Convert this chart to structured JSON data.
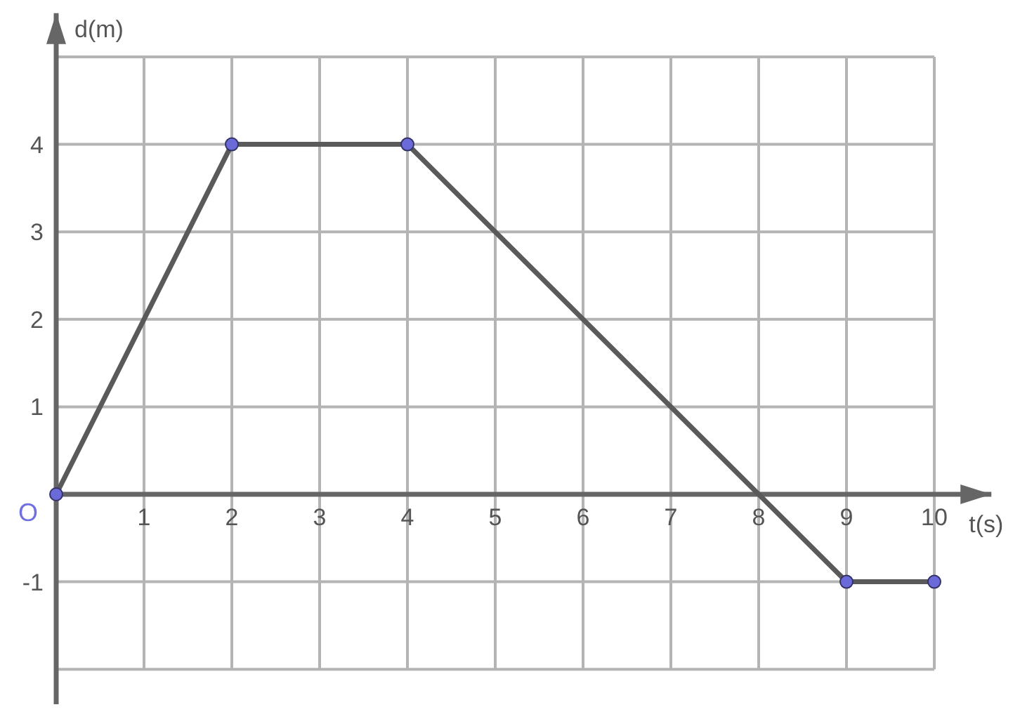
{
  "chart_data": {
    "type": "line",
    "xlabel": "t(s)",
    "ylabel": "d(m)",
    "x": [
      0,
      2,
      4,
      9,
      10
    ],
    "series": [
      {
        "color": "#5a5a5a",
        "values": [
          0,
          4,
          4,
          -1,
          -1
        ]
      }
    ],
    "xlim": [
      0,
      10.65
    ],
    "ylim": [
      -2.4,
      5.5
    ],
    "xticks": [
      {
        "value": 0,
        "label": null
      },
      1,
      2,
      3,
      4,
      5,
      6,
      7,
      8,
      9,
      10
    ],
    "yticks": [
      {
        "value": -2,
        "label": null
      },
      -1,
      {
        "value": 0,
        "label": null
      },
      1,
      2,
      3,
      4,
      {
        "value": 5,
        "label": null
      }
    ],
    "grid": true,
    "marker": "circle",
    "line_style": "solid",
    "annotations": [
      {
        "text": "O",
        "x": 0,
        "y": 0
      }
    ]
  }
}
